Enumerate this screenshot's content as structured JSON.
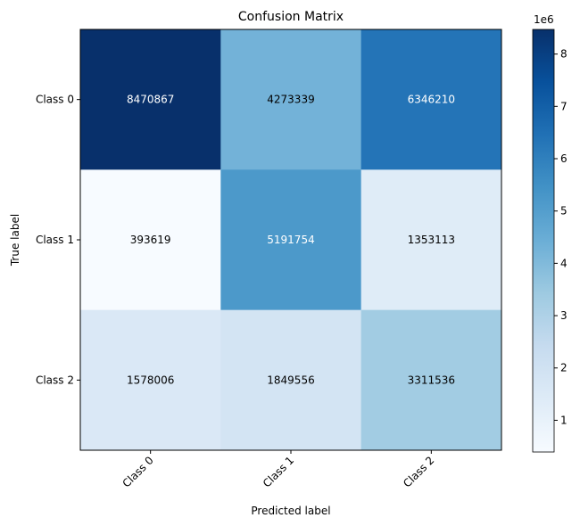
{
  "chart_data": {
    "type": "heatmap",
    "title": "Confusion Matrix",
    "xlabel": "Predicted label",
    "ylabel": "True label",
    "x_categories": [
      "Class 0",
      "Class 1",
      "Class 2"
    ],
    "y_categories": [
      "Class 0",
      "Class 1",
      "Class 2"
    ],
    "values": [
      [
        8470867,
        4273339,
        6346210
      ],
      [
        393619,
        5191754,
        1353113
      ],
      [
        1578006,
        1849556,
        3311536
      ]
    ],
    "cell_labels": [
      [
        "8470867",
        "4273339",
        "6346210"
      ],
      [
        "393619",
        "5191754",
        "1353113"
      ],
      [
        "1578006",
        "1849556",
        "3311536"
      ]
    ],
    "colormap": "Blues",
    "colorbar": {
      "range": [
        393619,
        8470867
      ],
      "ticks": [
        1,
        2,
        3,
        4,
        5,
        6,
        7,
        8
      ],
      "tick_labels": [
        "1",
        "2",
        "3",
        "4",
        "5",
        "6",
        "7",
        "8"
      ],
      "scale_label": "1e6"
    },
    "label_colors": {
      "light": "#ffffff",
      "dark": "#000000"
    }
  }
}
